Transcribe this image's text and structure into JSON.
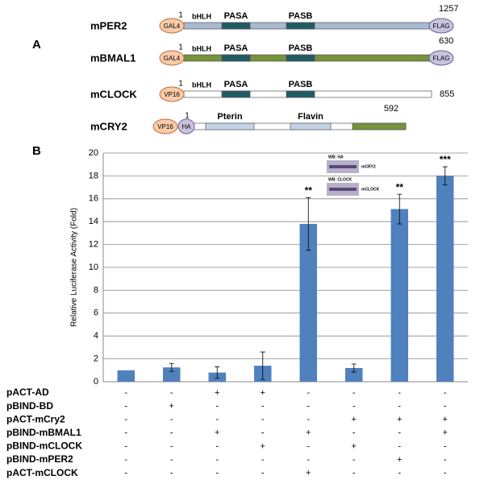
{
  "panel_a": {
    "label": "A",
    "constructs": [
      {
        "name": "mPER2",
        "left_tags": [
          "GAL4"
        ],
        "start": "1",
        "motif": "bHLH",
        "domains": [
          "PASA",
          "PASB"
        ],
        "end": "1257",
        "right_tag": "FLAG"
      },
      {
        "name": "mBMAL1",
        "left_tags": [
          "GAL4"
        ],
        "start": "1",
        "motif": "bHLH",
        "domains": [
          "PASA",
          "PASB"
        ],
        "end": "630",
        "right_tag": "FLAG"
      },
      {
        "name": "mCLOCK",
        "left_tags": [
          "VP16"
        ],
        "start": "1",
        "motif": "bHLH",
        "domains": [
          "PASA",
          "PASB"
        ],
        "end": "855"
      },
      {
        "name": "mCRY2",
        "left_tags": [
          "VP16",
          "HA"
        ],
        "start": "1",
        "domains": [
          "Pterin",
          "Flavin"
        ],
        "end": "592"
      }
    ]
  },
  "chart_data": {
    "type": "bar",
    "panel_label": "B",
    "y_label": "Relative Luciferase Activity (Fold)",
    "categories": [
      null,
      null,
      null,
      null,
      null,
      null,
      null,
      null
    ],
    "series": [
      {
        "color": "#4f81bd",
        "values": [
          1.0,
          1.25,
          0.8,
          1.4,
          13.8,
          1.2,
          15.1,
          18.0
        ],
        "errors": [
          0,
          0.35,
          0.5,
          1.2,
          2.3,
          0.35,
          1.3,
          0.8
        ]
      }
    ],
    "significance": [
      null,
      null,
      null,
      null,
      "**",
      null,
      "**",
      "***"
    ],
    "ylim": [
      0,
      20
    ],
    "yticks": [
      0,
      2,
      4,
      6,
      8,
      10,
      12,
      14,
      16,
      18,
      20
    ],
    "grid": true,
    "inset": {
      "blot1_label": "WB: HA",
      "blot1_band": "mCRY2",
      "blot2_label": "WB: CLOCK",
      "blot2_band": "mCLOCK"
    },
    "conditions": [
      {
        "name": "pACT-AD",
        "marks": [
          "-",
          "-",
          "+",
          "+",
          "-",
          "-",
          "-",
          "-"
        ]
      },
      {
        "name": "pBIND-BD",
        "marks": [
          "-",
          "+",
          "-",
          "-",
          "-",
          "-",
          "-",
          "-"
        ]
      },
      {
        "name": "pACT-mCry2",
        "marks": [
          "-",
          "-",
          "-",
          "-",
          "-",
          "+",
          "+",
          "+"
        ]
      },
      {
        "name": "pBIND-mBMAL1",
        "marks": [
          "-",
          "-",
          "+",
          "-",
          "+",
          "-",
          "-",
          "+"
        ]
      },
      {
        "name": "pBIND-mCLOCK",
        "marks": [
          "-",
          "-",
          "-",
          "+",
          "-",
          "+",
          "-",
          "-"
        ]
      },
      {
        "name": "pBIND-mPER2",
        "marks": [
          "-",
          "-",
          "-",
          "-",
          "-",
          "-",
          "+",
          "-"
        ]
      },
      {
        "name": "pACT-mCLOCK",
        "marks": [
          "-",
          "-",
          "-",
          "-",
          "+",
          "-",
          "-",
          "-"
        ]
      }
    ]
  }
}
